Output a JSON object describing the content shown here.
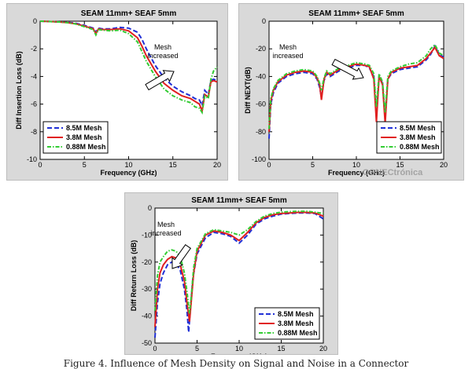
{
  "caption": "Figure 4. Influence of Mesh Density on Signal and Noise in a Connector",
  "watermark": "CONECtrónica",
  "colors": {
    "mesh_8_5": "#1f2fd6",
    "mesh_3_8": "#e02020",
    "mesh_0_88": "#33cc33",
    "panel_bg": "#d9d9d9"
  },
  "chart_data": [
    {
      "type": "line",
      "title": "SEAM 11mm+ SEAF 5mm",
      "xlabel": "Frequency (GHz)",
      "ylabel": "Diff Insertion Loss (dB)",
      "xlim": [
        0,
        20
      ],
      "ylim": [
        -10,
        0
      ],
      "xticks": [
        0,
        5,
        10,
        15,
        20
      ],
      "yticks": [
        0,
        -2,
        -4,
        -6,
        -8,
        -10
      ],
      "grid": false,
      "legend_position": "bottom-left",
      "annotation": [
        "Mesh",
        "increased"
      ],
      "series": [
        {
          "name": "8.5M Mesh",
          "x": [
            0,
            1,
            2,
            3,
            4,
            5,
            6,
            6.3,
            6.6,
            7,
            8,
            9,
            10,
            11,
            11.5,
            12,
            13,
            14,
            15,
            16,
            17,
            17.5,
            18,
            18.3,
            18.6,
            19,
            19.3,
            19.6,
            20
          ],
          "y": [
            0,
            -0.02,
            -0.05,
            -0.08,
            -0.15,
            -0.3,
            -0.5,
            -0.8,
            -0.5,
            -0.55,
            -0.55,
            -0.45,
            -0.5,
            -0.8,
            -1.3,
            -2.0,
            -3.2,
            -4.1,
            -4.7,
            -5.1,
            -5.4,
            -5.6,
            -5.7,
            -6.1,
            -5.0,
            -5.3,
            -4.3,
            -4.2,
            -4.3
          ]
        },
        {
          "name": "3.8M Mesh",
          "x": [
            0,
            1,
            2,
            3,
            4,
            5,
            6,
            6.3,
            6.6,
            7,
            8,
            9,
            10,
            11,
            11.5,
            12,
            13,
            14,
            15,
            16,
            17,
            17.5,
            18,
            18.3,
            18.6,
            19,
            19.3,
            19.6,
            20
          ],
          "y": [
            0,
            -0.02,
            -0.05,
            -0.1,
            -0.18,
            -0.35,
            -0.55,
            -0.9,
            -0.55,
            -0.6,
            -0.6,
            -0.55,
            -0.7,
            -1.2,
            -1.8,
            -2.5,
            -3.6,
            -4.5,
            -5.0,
            -5.4,
            -5.6,
            -5.8,
            -6.0,
            -6.5,
            -5.3,
            -5.5,
            -4.4,
            -4.3,
            -4.4
          ]
        },
        {
          "name": "0.88M Mesh",
          "x": [
            0,
            1,
            2,
            3,
            4,
            5,
            6,
            6.3,
            6.6,
            7,
            8,
            9,
            10,
            11,
            11.5,
            12,
            13,
            14,
            15,
            16,
            17,
            17.5,
            18,
            18.3,
            18.6,
            19,
            19.3,
            19.6,
            20
          ],
          "y": [
            0,
            -0.02,
            -0.05,
            -0.1,
            -0.2,
            -0.4,
            -0.6,
            -1.0,
            -0.6,
            -0.65,
            -0.7,
            -0.65,
            -0.9,
            -1.5,
            -2.2,
            -2.9,
            -4.0,
            -4.9,
            -5.4,
            -5.7,
            -5.9,
            -6.2,
            -6.3,
            -6.6,
            -5.4,
            -5.6,
            -4.2,
            -3.6,
            -3.3
          ]
        }
      ]
    },
    {
      "type": "line",
      "title": "SEAM 11mm+ SEAF 5mm",
      "xlabel": "Frequency (GHz)",
      "ylabel": "Diff NEXT(dB)",
      "xlim": [
        0,
        20
      ],
      "ylim": [
        -100,
        0
      ],
      "xticks": [
        0,
        5,
        10,
        15,
        20
      ],
      "yticks": [
        0,
        -20,
        -40,
        -60,
        -80,
        -100
      ],
      "grid": false,
      "legend_position": "bottom-right",
      "annotation": [
        "Mesh",
        "increased"
      ],
      "series": [
        {
          "name": "8.5M Mesh",
          "x": [
            0,
            0.2,
            0.5,
            1,
            2,
            3,
            4,
            5,
            5.5,
            5.8,
            6,
            6.3,
            6.6,
            7,
            8,
            9,
            10,
            11,
            11.5,
            12,
            12.3,
            12.6,
            13,
            13.3,
            13.6,
            14,
            15,
            16,
            17,
            18,
            18.5,
            19,
            19.5,
            20
          ],
          "y": [
            -85,
            -60,
            -52,
            -45,
            -40,
            -38,
            -37,
            -38,
            -42,
            -48,
            -55,
            -43,
            -38,
            -40,
            -36,
            -34,
            -32,
            -32,
            -34,
            -40,
            -68,
            -40,
            -45,
            -70,
            -42,
            -38,
            -35,
            -34,
            -33,
            -28,
            -24,
            -18,
            -24,
            -26
          ]
        },
        {
          "name": "3.8M Mesh",
          "x": [
            0,
            0.2,
            0.5,
            1,
            2,
            3,
            4,
            5,
            5.5,
            5.8,
            6,
            6.3,
            6.6,
            7,
            8,
            9,
            10,
            11,
            11.5,
            12,
            12.3,
            12.6,
            13,
            13.3,
            13.6,
            14,
            15,
            16,
            17,
            18,
            18.5,
            19,
            19.5,
            20
          ],
          "y": [
            -80,
            -58,
            -50,
            -44,
            -39,
            -37,
            -36,
            -37,
            -41,
            -46,
            -57,
            -42,
            -37,
            -39,
            -35,
            -33,
            -31,
            -32,
            -33,
            -42,
            -73,
            -40,
            -46,
            -74,
            -42,
            -37,
            -34,
            -33,
            -32,
            -27,
            -23,
            -19,
            -25,
            -27
          ]
        },
        {
          "name": "0.88M Mesh",
          "x": [
            0,
            0.2,
            0.5,
            1,
            2,
            3,
            4,
            5,
            5.5,
            5.8,
            6,
            6.3,
            6.6,
            7,
            8,
            9,
            10,
            11,
            11.5,
            12,
            12.3,
            12.6,
            13,
            13.3,
            13.6,
            14,
            15,
            16,
            17,
            18,
            18.5,
            19,
            19.5,
            20
          ],
          "y": [
            -78,
            -56,
            -49,
            -43,
            -38,
            -36,
            -35,
            -36,
            -40,
            -45,
            -50,
            -41,
            -36,
            -38,
            -34,
            -32,
            -30,
            -31,
            -32,
            -38,
            -62,
            -38,
            -44,
            -66,
            -40,
            -36,
            -33,
            -31,
            -30,
            -25,
            -20,
            -17,
            -23,
            -25
          ]
        }
      ]
    },
    {
      "type": "line",
      "title": "SEAM 11mm+ SEAF 5mm",
      "xlabel": "Frequency (GHz)",
      "ylabel": "Diff Return Loss (dB)",
      "xlim": [
        0,
        20
      ],
      "ylim": [
        -50,
        0
      ],
      "xticks": [
        0,
        5,
        10,
        15,
        20
      ],
      "yticks": [
        0,
        -10,
        -20,
        -30,
        -40,
        -50
      ],
      "grid": false,
      "legend_position": "bottom-right",
      "annotation": [
        "Mesh",
        "increased"
      ],
      "series": [
        {
          "name": "8.5M Mesh",
          "x": [
            0,
            0.3,
            0.6,
            1,
            1.5,
            2,
            2.5,
            3,
            3.5,
            3.8,
            4.0,
            4.2,
            4.5,
            5,
            6,
            7,
            8,
            9,
            10,
            11,
            12,
            13,
            14,
            15,
            16,
            17,
            18,
            19,
            20
          ],
          "y": [
            -48,
            -35,
            -28,
            -24,
            -21,
            -20,
            -20.5,
            -23,
            -30,
            -38,
            -46,
            -38,
            -26,
            -17,
            -11,
            -9,
            -9.5,
            -10.5,
            -13,
            -10,
            -6,
            -4,
            -3,
            -2.2,
            -2,
            -1.8,
            -1.8,
            -2,
            -4
          ]
        },
        {
          "name": "3.8M Mesh",
          "x": [
            0,
            0.3,
            0.6,
            1,
            1.5,
            2,
            2.5,
            3,
            3.5,
            3.8,
            4.1,
            4.3,
            4.6,
            5,
            6,
            7,
            8,
            9,
            10,
            11,
            12,
            13,
            14,
            15,
            16,
            17,
            18,
            19,
            20
          ],
          "y": [
            -44,
            -30,
            -24,
            -21,
            -19,
            -18,
            -18.5,
            -21,
            -27,
            -35,
            -42,
            -35,
            -24,
            -16,
            -10,
            -8.5,
            -9,
            -10,
            -12,
            -9,
            -5.5,
            -3.5,
            -2.5,
            -2,
            -1.8,
            -1.6,
            -1.6,
            -1.8,
            -3
          ]
        },
        {
          "name": "0.88M Mesh",
          "x": [
            0,
            0.3,
            0.6,
            1,
            1.5,
            2,
            2.5,
            3,
            3.5,
            3.8,
            4.1,
            4.3,
            4.6,
            5,
            6,
            7,
            8,
            9,
            10,
            11,
            12,
            13,
            14,
            15,
            16,
            17,
            18,
            19,
            20
          ],
          "y": [
            -38,
            -25,
            -20,
            -18,
            -16,
            -15.5,
            -16,
            -18,
            -24,
            -31,
            -39,
            -33,
            -22,
            -15,
            -9.5,
            -8,
            -8.5,
            -9,
            -10,
            -8,
            -5,
            -3,
            -2,
            -1.5,
            -1.3,
            -1.2,
            -1.2,
            -1.5,
            -2
          ]
        }
      ]
    }
  ]
}
